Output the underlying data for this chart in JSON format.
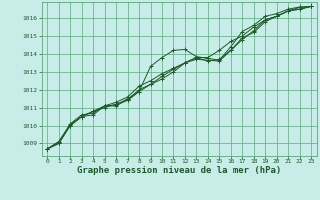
{
  "title": "Graphe pression niveau de la mer (hPa)",
  "title_fontsize": 6.5,
  "bg_color": "#c8ede8",
  "grid_color": "#5aaa7a",
  "line_color": "#1a5c28",
  "xlim": [
    -0.5,
    23.5
  ],
  "ylim": [
    1008.3,
    1016.9
  ],
  "yticks": [
    1009,
    1010,
    1011,
    1012,
    1013,
    1014,
    1015,
    1016
  ],
  "xticks": [
    0,
    1,
    2,
    3,
    4,
    5,
    6,
    7,
    8,
    9,
    10,
    11,
    12,
    13,
    14,
    15,
    16,
    17,
    18,
    19,
    20,
    21,
    22,
    23
  ],
  "series": [
    [
      1008.7,
      1009.1,
      1010.1,
      1010.6,
      1010.7,
      1011.1,
      1011.15,
      1011.5,
      1011.9,
      1013.3,
      1013.8,
      1014.2,
      1014.25,
      1013.85,
      1013.75,
      1013.65,
      1014.4,
      1015.25,
      1015.6,
      1016.1,
      1016.25,
      1016.5,
      1016.62,
      1016.65
    ],
    [
      1008.7,
      1009.0,
      1010.05,
      1010.5,
      1010.8,
      1011.1,
      1011.3,
      1011.6,
      1012.2,
      1012.5,
      1012.9,
      1013.2,
      1013.5,
      1013.8,
      1013.8,
      1014.2,
      1014.7,
      1015.0,
      1015.5,
      1015.9,
      1016.1,
      1016.4,
      1016.6,
      1016.65
    ],
    [
      1008.7,
      1009.0,
      1010.0,
      1010.5,
      1010.8,
      1011.0,
      1011.2,
      1011.4,
      1011.9,
      1012.3,
      1012.6,
      1013.0,
      1013.5,
      1013.8,
      1013.6,
      1013.7,
      1014.2,
      1014.8,
      1015.3,
      1015.9,
      1016.1,
      1016.4,
      1016.5,
      1016.65
    ],
    [
      1008.7,
      1009.1,
      1010.0,
      1010.5,
      1010.6,
      1011.1,
      1011.1,
      1011.45,
      1012.0,
      1012.3,
      1012.75,
      1013.15,
      1013.5,
      1013.7,
      1013.65,
      1013.6,
      1014.2,
      1014.9,
      1015.2,
      1015.8,
      1016.1,
      1016.4,
      1016.5,
      1016.65
    ]
  ]
}
